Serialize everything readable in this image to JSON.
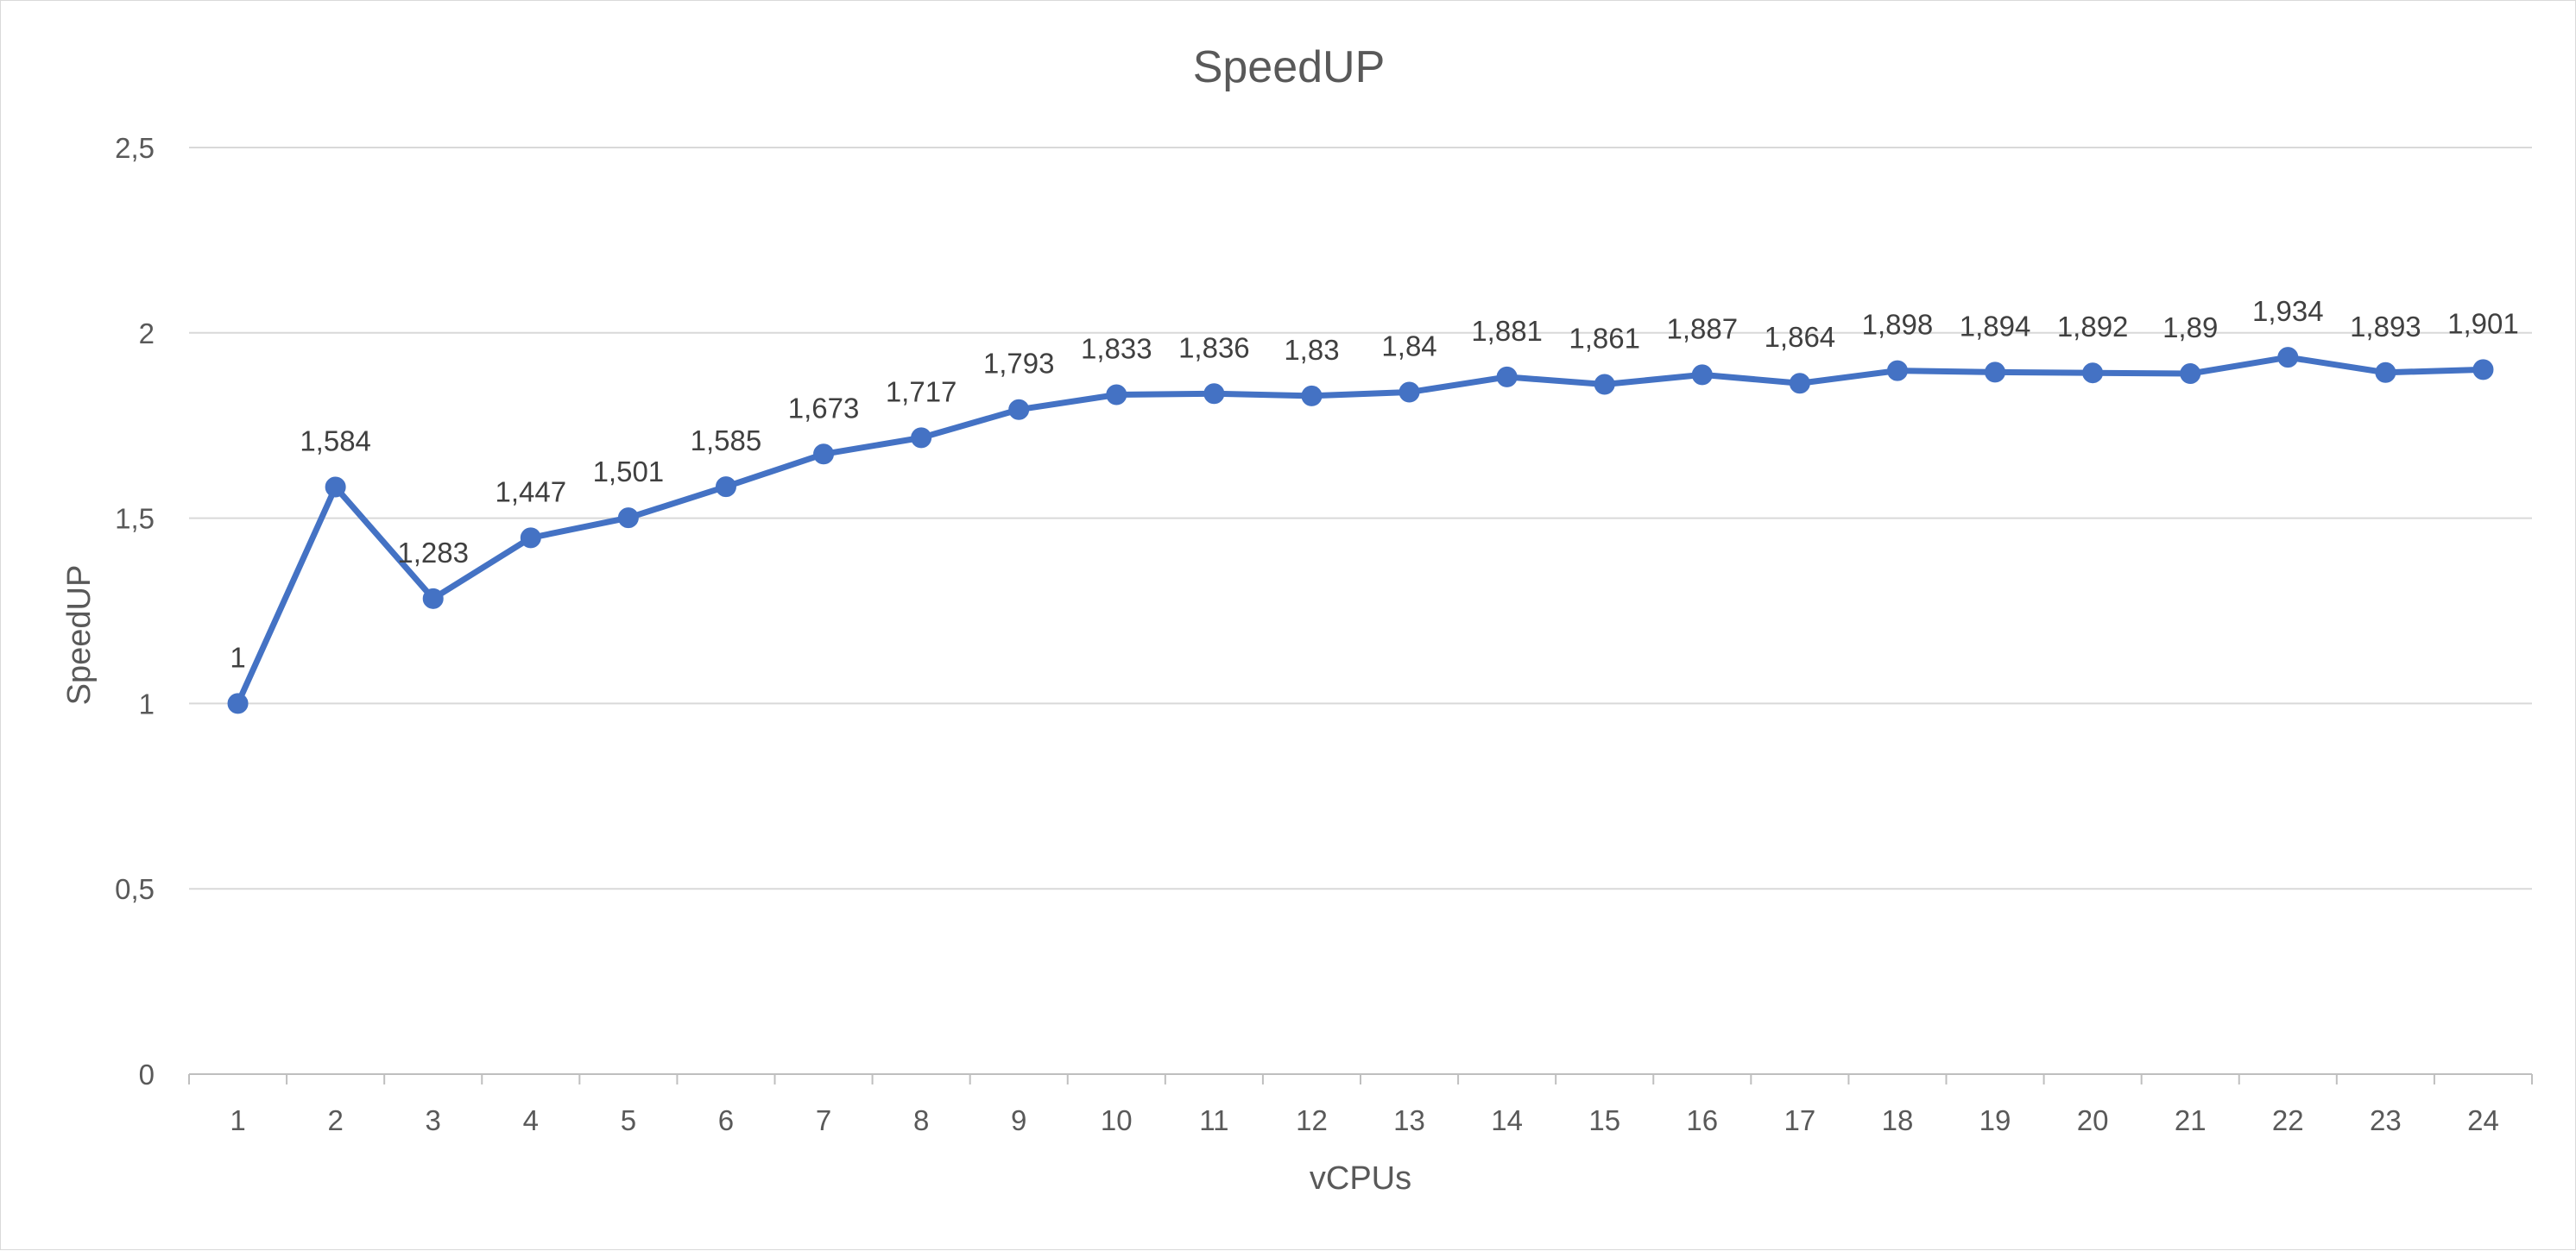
{
  "chart_data": {
    "type": "line",
    "title": "SpeedUP",
    "xlabel": "vCPUs",
    "ylabel": "SpeedUP",
    "categories": [
      "1",
      "2",
      "3",
      "4",
      "5",
      "6",
      "7",
      "8",
      "9",
      "10",
      "11",
      "12",
      "13",
      "14",
      "15",
      "16",
      "17",
      "18",
      "19",
      "20",
      "21",
      "22",
      "23",
      "24"
    ],
    "series": [
      {
        "values": [
          1,
          1.584,
          1.283,
          1.447,
          1.501,
          1.585,
          1.673,
          1.717,
          1.793,
          1.833,
          1.836,
          1.83,
          1.84,
          1.881,
          1.861,
          1.887,
          1.864,
          1.898,
          1.894,
          1.892,
          1.89,
          1.934,
          1.893,
          1.901
        ],
        "data_labels": [
          "1",
          "1,584",
          "1,283",
          "1,447",
          "1,501",
          "1,585",
          "1,673",
          "1,717",
          "1,793",
          "1,833",
          "1,836",
          "1,83",
          "1,84",
          "1,881",
          "1,861",
          "1,887",
          "1,864",
          "1,898",
          "1,894",
          "1,892",
          "1,89",
          "1,934",
          "1,893",
          "1,901"
        ],
        "color": "#4472c4",
        "marker": "circle"
      }
    ],
    "ylim": [
      0,
      2.5
    ],
    "yticks": [
      0,
      0.5,
      1,
      1.5,
      2,
      2.5
    ],
    "ytick_labels": [
      "0",
      "0,5",
      "1",
      "1,5",
      "2",
      "2,5"
    ],
    "grid": true,
    "legend": "none",
    "colors": {
      "series": "#4472c4",
      "grid": "#d9d9d9",
      "text": "#595959"
    }
  }
}
